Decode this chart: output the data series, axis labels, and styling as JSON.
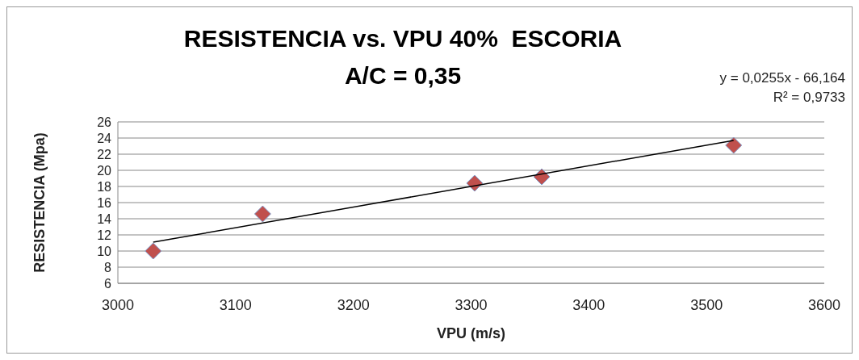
{
  "chart_data": {
    "type": "scatter",
    "title": "RESISTENCIA vs. VPU 40%  ESCORIA",
    "subtitle": "A/C = 0,35",
    "xlabel": "VPU (m/s)",
    "ylabel": "RESISTENCIA (Mpa)",
    "annotations": [
      "y = 0,0255x - 66,164",
      "R² = 0,9733"
    ],
    "xlim": [
      3000,
      3600
    ],
    "xticks": [
      3000,
      3100,
      3200,
      3300,
      3400,
      3500,
      3600
    ],
    "ylim": [
      6,
      26
    ],
    "yticks": [
      6,
      8,
      10,
      12,
      14,
      16,
      18,
      20,
      22,
      24,
      26
    ],
    "grid": "y",
    "legend": false,
    "series": [
      {
        "type": "scatter",
        "color": "#c0504d",
        "marker": "diamond",
        "x": [
          3030,
          3123,
          3303,
          3360,
          3523
        ],
        "values": [
          10.0,
          14.6,
          18.4,
          19.2,
          23.1
        ]
      },
      {
        "type": "line",
        "color": "#000000",
        "marker": "none",
        "line_style": "solid",
        "x": [
          3030,
          3523
        ],
        "values": [
          11.1,
          23.7
        ]
      }
    ]
  }
}
